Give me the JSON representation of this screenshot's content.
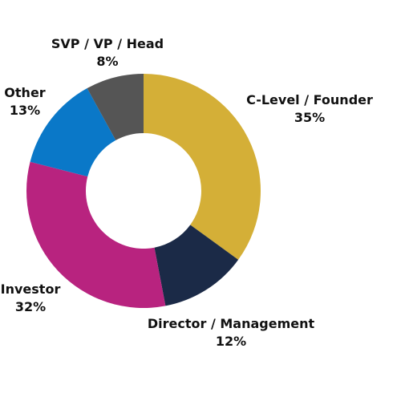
{
  "chart_data": {
    "type": "pie",
    "variant": "donut",
    "title": "",
    "slices": [
      {
        "label": "C-Level / Founder",
        "value": 35,
        "value_label": "35%",
        "color": "#D4AF37"
      },
      {
        "label": "Director / Management",
        "value": 12,
        "value_label": "12%",
        "color": "#1B2A47"
      },
      {
        "label": "Investor",
        "value": 32,
        "value_label": "32%",
        "color": "#B8237F"
      },
      {
        "label": "Other",
        "value": 13,
        "value_label": "13%",
        "color": "#0A78C8"
      },
      {
        "label": "SVP / VP / Head",
        "value": 8,
        "value_label": "8%",
        "color": "#555555"
      }
    ],
    "legend": "none"
  }
}
